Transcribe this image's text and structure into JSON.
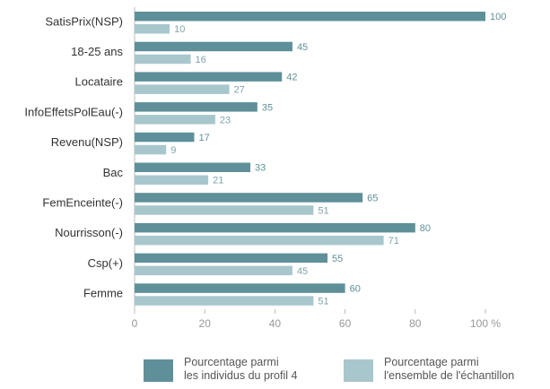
{
  "chart_data": {
    "type": "bar",
    "orientation": "horizontal",
    "categories": [
      "SatisPrix(NSP)",
      "18-25 ans",
      "Locataire",
      "InfoEffetsPolEau(-)",
      "Revenu(NSP)",
      "Bac",
      "FemEnceinte(-)",
      "Nourrisson(-)",
      "Csp(+)",
      "Femme"
    ],
    "series": [
      {
        "name": "Pourcentage parmi\nles individus du profil 4",
        "color": "#5f9099",
        "values": [
          100,
          45,
          42,
          35,
          17,
          33,
          65,
          80,
          55,
          60
        ]
      },
      {
        "name": "Pourcentage parmi\nl'ensemble de l'échantillon",
        "color": "#a8c7cd",
        "values": [
          10,
          16,
          27,
          23,
          9,
          21,
          51,
          71,
          45,
          51
        ]
      }
    ],
    "xlim": [
      0,
      100
    ],
    "xticks": [
      0,
      20,
      40,
      60,
      80,
      {
        "value": 100,
        "label": "100 %"
      }
    ],
    "legend": "bottom"
  }
}
